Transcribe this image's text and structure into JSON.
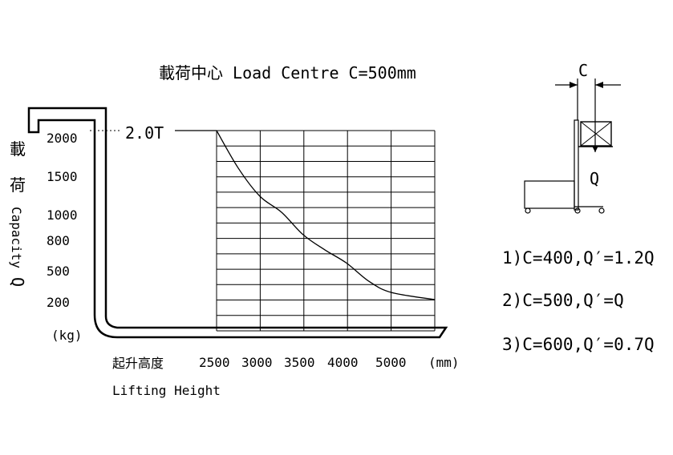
{
  "title": "載荷中心 Load Centre C=500mm",
  "y_axis": {
    "label_cn_1": "載",
    "label_cn_2": "荷",
    "label_en": "Capacity",
    "symbol": "Q",
    "unit": "(kg)"
  },
  "x_axis": {
    "label_cn": "起升高度",
    "label_en": "Lifting Height",
    "unit": "(mm)"
  },
  "rated_label": "2.0T",
  "chart_data": {
    "type": "line",
    "title": "載荷中心 Load Centre C=500mm",
    "xlabel": "起升高度 Lifting Height (mm)",
    "ylabel": "載荷 Capacity Q (kg)",
    "x_ticks": [
      "2500",
      "3000",
      "3500",
      "4000",
      "5000"
    ],
    "y_ticks": [
      "2000",
      "1500",
      "1000",
      "800",
      "500",
      "200"
    ],
    "grid": true,
    "series": [
      {
        "x": [
          2500,
          2750,
          3000,
          3250,
          3500,
          3750,
          4000,
          4500,
          5000,
          5500
        ],
        "y": [
          2000,
          1550,
          1200,
          1000,
          830,
          690,
          560,
          380,
          270,
          200
        ]
      }
    ]
  },
  "diagram": {
    "c_label": "C",
    "q_label": "Q"
  },
  "notes": [
    "1)C=400,Q′=1.2Q",
    "2)C=500,Q′=Q",
    "3)C=600,Q′=0.7Q"
  ]
}
